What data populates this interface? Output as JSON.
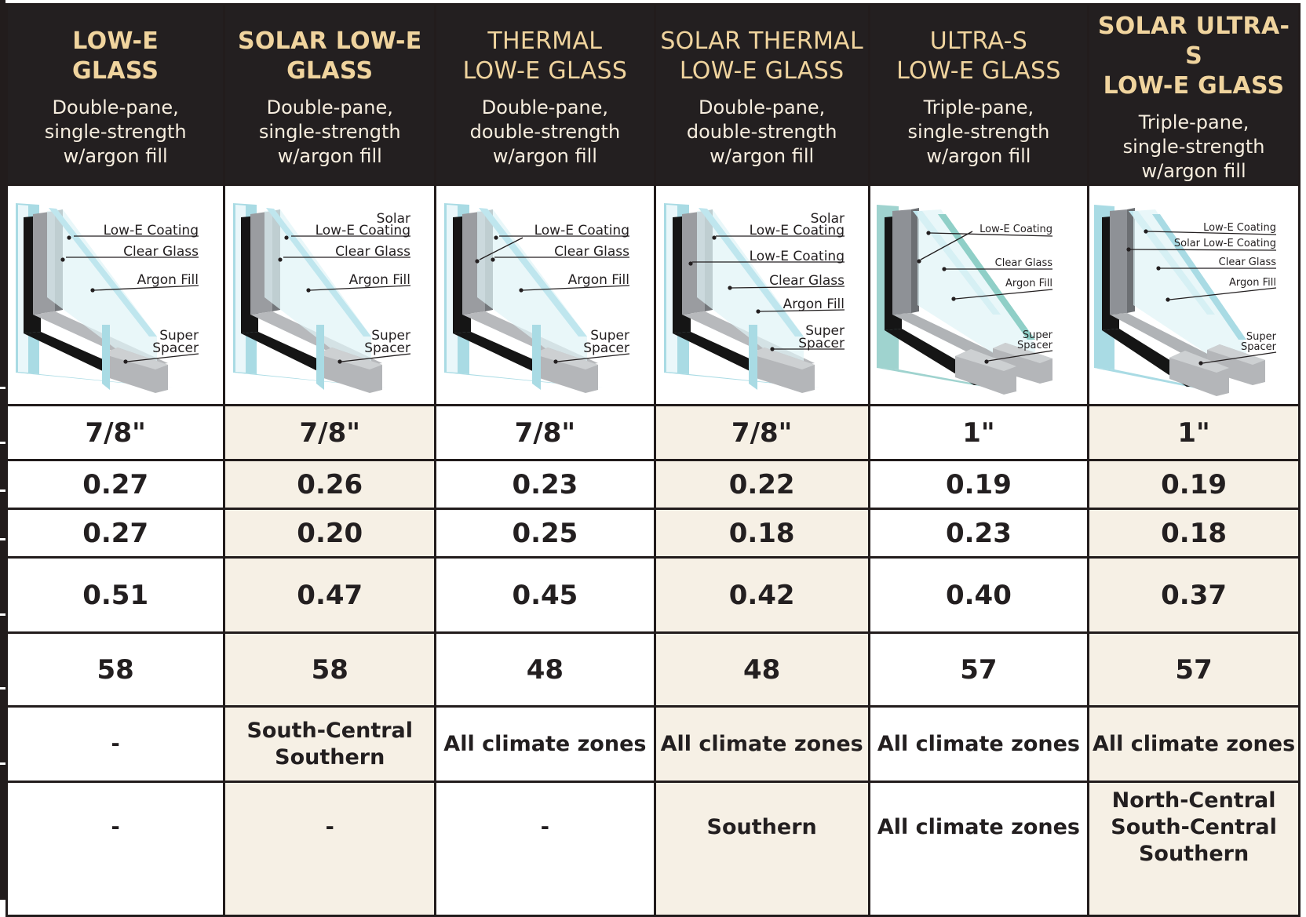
{
  "columns": [
    {
      "title": [
        "LOW-E",
        "GLASS"
      ],
      "desc": [
        "Double-pane,",
        "single-strength",
        "w/argon fill"
      ],
      "bold": true
    },
    {
      "title": [
        "SOLAR LOW-E",
        "GLASS"
      ],
      "desc": [
        "Double-pane,",
        "single-strength",
        "w/argon fill"
      ],
      "bold": true
    },
    {
      "title": [
        "THERMAL",
        "LOW-E GLASS"
      ],
      "desc": [
        "Double-pane,",
        "double-strength",
        "w/argon fill"
      ],
      "bold": false
    },
    {
      "title": [
        "SOLAR THERMAL",
        "LOW-E GLASS"
      ],
      "desc": [
        "Double-pane,",
        "double-strength",
        "w/argon fill"
      ],
      "bold": false
    },
    {
      "title": [
        "ULTRA-S",
        "LOW-E GLASS"
      ],
      "desc": [
        "Triple-pane,",
        "single-strength",
        "w/argon fill"
      ],
      "bold": false
    },
    {
      "title": [
        "SOLAR ULTRA-S",
        "LOW-E GLASS"
      ],
      "desc": [
        "Triple-pane,",
        "single-strength",
        "w/argon fill"
      ],
      "bold": true
    }
  ],
  "diagrams": [
    {
      "labels": [
        "Low-E Coating",
        "Clear Glass",
        "Argon Fill",
        "Super",
        "Spacer"
      ]
    },
    {
      "labels": [
        "Solar",
        "Low-E Coating",
        "Clear Glass",
        "Argon Fill",
        "Super",
        "Spacer"
      ]
    },
    {
      "labels": [
        "Low-E Coating",
        "Clear Glass",
        "Argon Fill",
        "Super",
        "Spacer"
      ]
    },
    {
      "labels": [
        "Solar",
        "Low-E Coating",
        "Low-E Coating",
        "Clear Glass",
        "Argon Fill",
        "Super",
        "Spacer"
      ]
    },
    {
      "labels": [
        "Low-E Coating",
        "Clear Glass",
        "Argon Fill",
        "Super",
        "Spacer"
      ]
    },
    {
      "labels": [
        "Low-E Coating",
        "Solar Low-E Coating",
        "Clear Glass",
        "Argon Fill",
        "Super",
        "Spacer"
      ]
    }
  ],
  "rows": [
    {
      "values": [
        "7/8\"",
        "7/8\"",
        "7/8\"",
        "7/8\"",
        "1\"",
        "1\""
      ]
    },
    {
      "values": [
        "0.27",
        "0.26",
        "0.23",
        "0.22",
        "0.19",
        "0.19"
      ]
    },
    {
      "values": [
        "0.27",
        "0.20",
        "0.25",
        "0.18",
        "0.23",
        "0.18"
      ]
    },
    {
      "values": [
        "0.51",
        "0.47",
        "0.45",
        "0.42",
        "0.40",
        "0.37"
      ]
    },
    {
      "values": [
        "58",
        "58",
        "48",
        "48",
        "57",
        "57"
      ]
    },
    {
      "values": [
        [
          "-"
        ],
        [
          "South-Central",
          "Southern"
        ],
        [
          "All climate zones"
        ],
        [
          "All climate zones"
        ],
        [
          "All climate zones"
        ],
        [
          "All climate zones"
        ]
      ]
    },
    {
      "values": [
        [
          "-"
        ],
        [
          "-"
        ],
        [
          "-"
        ],
        [
          "Southern"
        ],
        [
          "All climate zones"
        ],
        [
          "North-Central",
          "South-Central",
          "Southern"
        ]
      ]
    }
  ],
  "colors": {
    "header_bg": "#231f20",
    "header_title": "#f0d49e",
    "header_text": "#f7eedf",
    "shade": "#f6f0e5",
    "glass_edge": "#a9dbe4",
    "frame": "#8e9196",
    "spacer": "#a8abae"
  }
}
